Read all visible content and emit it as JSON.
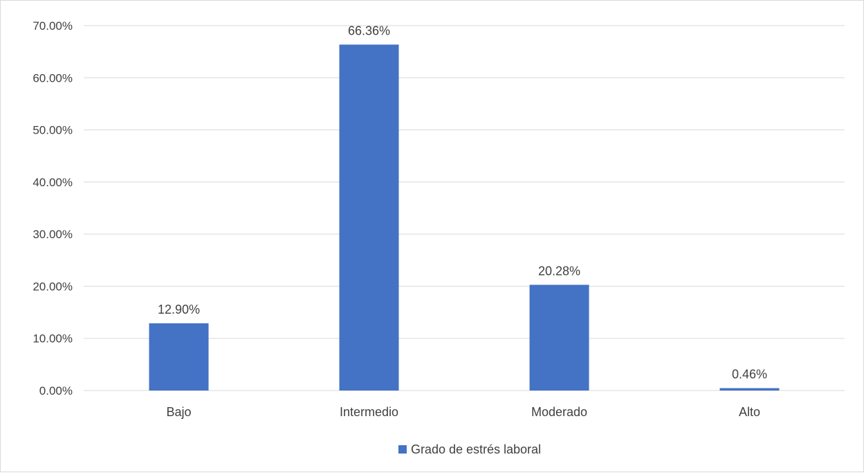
{
  "chart_data": {
    "type": "bar",
    "categories": [
      "Bajo",
      "Intermedio",
      "Moderado",
      "Alto"
    ],
    "series": [
      {
        "name": "Grado de estrés laboral",
        "values": [
          12.9,
          66.36,
          20.28,
          0.46
        ],
        "data_labels": [
          "12.90%",
          "66.36%",
          "20.28%",
          "0.46%"
        ]
      }
    ],
    "ylim": [
      0,
      70
    ],
    "yticks": [
      0,
      10,
      20,
      30,
      40,
      50,
      60,
      70
    ],
    "ytick_labels": [
      "0.00%",
      "10.00%",
      "20.00%",
      "30.00%",
      "40.00%",
      "50.00%",
      "60.00%",
      "70.00%"
    ],
    "grid": true,
    "legend_position": "bottom",
    "bar_color": "#4472C4",
    "grid_color": "#d9d9d9",
    "title": "",
    "xlabel": "",
    "ylabel": ""
  }
}
